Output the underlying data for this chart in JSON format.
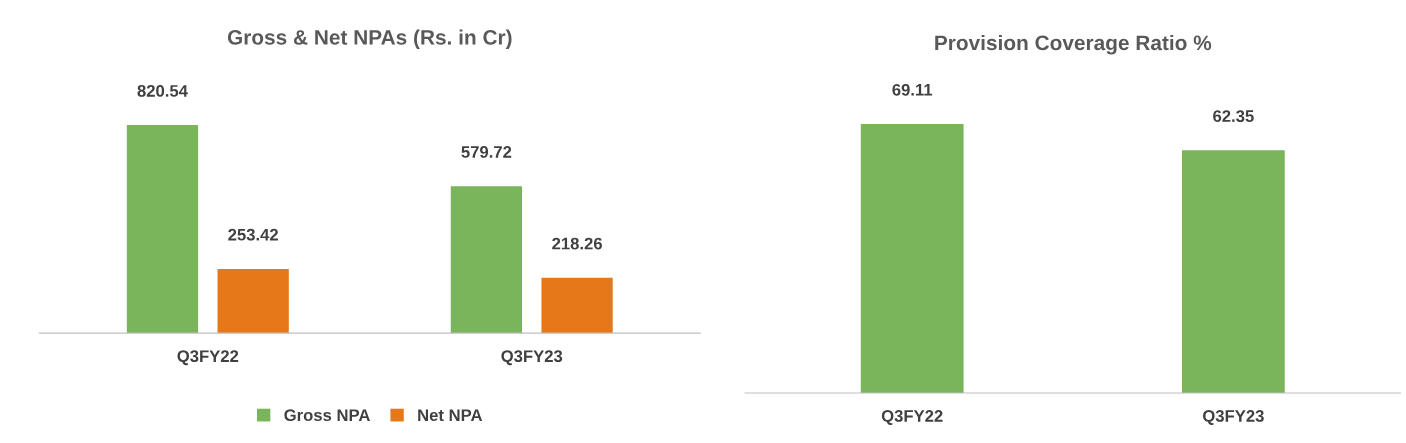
{
  "chart_data": [
    {
      "type": "bar",
      "title": "Gross & Net NPAs (Rs. in Cr)",
      "categories": [
        "Q3FY22",
        "Q3FY23"
      ],
      "data_labels": true,
      "legend": "bottom",
      "grid": false,
      "tick_labels": "x",
      "series": [
        {
          "name": "Gross NPA",
          "color": "#7ab55c",
          "values": [
            820.54,
            579.72
          ]
        },
        {
          "name": "Net NPA",
          "color": "#e6781a",
          "values": [
            253.42,
            218.26
          ]
        }
      ]
    },
    {
      "type": "bar",
      "title": "Provision Coverage Ratio %",
      "categories": [
        "Q3FY22",
        "Q3FY23"
      ],
      "data_labels": true,
      "legend": false,
      "grid": false,
      "tick_labels": "x",
      "series": [
        {
          "color": "#7ab55c",
          "values": [
            69.11,
            62.35
          ]
        }
      ]
    }
  ]
}
